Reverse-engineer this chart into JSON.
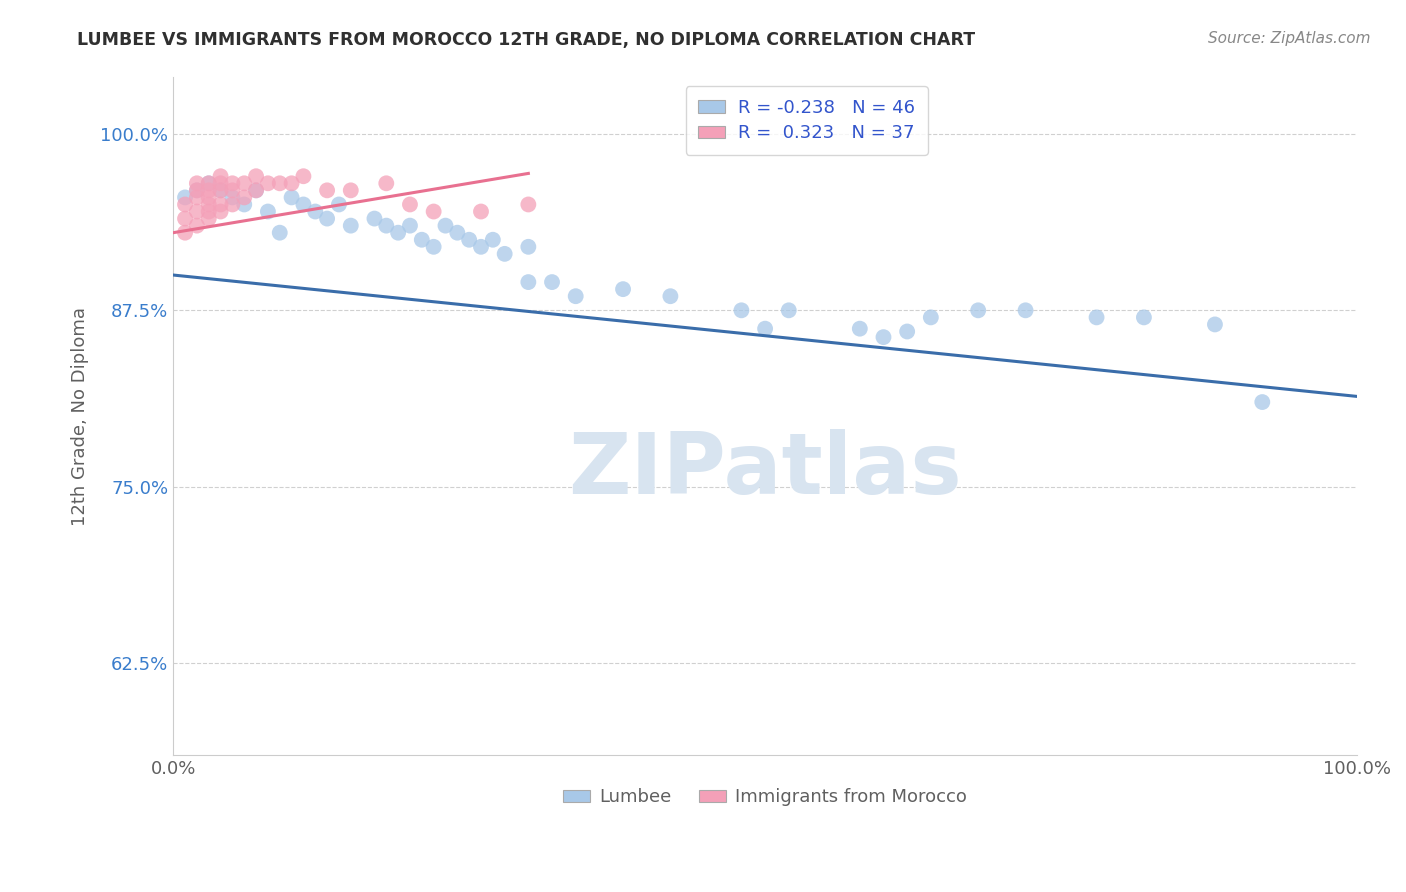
{
  "title": "LUMBEE VS IMMIGRANTS FROM MOROCCO 12TH GRADE, NO DIPLOMA CORRELATION CHART",
  "source": "Source: ZipAtlas.com",
  "ylabel": "12th Grade, No Diploma",
  "xlabel": "",
  "watermark": "ZIPatlas",
  "legend_entries": [
    {
      "label": "Lumbee",
      "color": "#a8c8e8",
      "R": "-0.238",
      "N": "46"
    },
    {
      "label": "Immigrants from Morocco",
      "color": "#f4a0b8",
      "R": "0.323",
      "N": "37"
    }
  ],
  "blue_scatter_x": [
    0.01,
    0.02,
    0.03,
    0.04,
    0.05,
    0.06,
    0.07,
    0.08,
    0.09,
    0.1,
    0.11,
    0.12,
    0.13,
    0.14,
    0.15,
    0.17,
    0.18,
    0.19,
    0.2,
    0.21,
    0.22,
    0.23,
    0.24,
    0.25,
    0.26,
    0.27,
    0.28,
    0.3,
    0.32,
    0.34,
    0.38,
    0.42,
    0.48,
    0.52,
    0.58,
    0.62,
    0.64,
    0.68,
    0.72,
    0.78,
    0.82,
    0.88,
    0.92,
    0.3,
    0.5,
    0.6
  ],
  "blue_scatter_y": [
    0.955,
    0.96,
    0.965,
    0.96,
    0.955,
    0.95,
    0.96,
    0.945,
    0.93,
    0.955,
    0.95,
    0.945,
    0.94,
    0.95,
    0.935,
    0.94,
    0.935,
    0.93,
    0.935,
    0.925,
    0.92,
    0.935,
    0.93,
    0.925,
    0.92,
    0.925,
    0.915,
    0.895,
    0.895,
    0.885,
    0.89,
    0.885,
    0.875,
    0.875,
    0.862,
    0.86,
    0.87,
    0.875,
    0.875,
    0.87,
    0.87,
    0.865,
    0.81,
    0.92,
    0.862,
    0.856
  ],
  "pink_scatter_x": [
    0.01,
    0.01,
    0.01,
    0.02,
    0.02,
    0.02,
    0.02,
    0.02,
    0.03,
    0.03,
    0.03,
    0.03,
    0.03,
    0.03,
    0.04,
    0.04,
    0.04,
    0.04,
    0.04,
    0.05,
    0.05,
    0.05,
    0.06,
    0.06,
    0.07,
    0.07,
    0.08,
    0.09,
    0.1,
    0.11,
    0.13,
    0.15,
    0.18,
    0.2,
    0.22,
    0.26,
    0.3
  ],
  "pink_scatter_y": [
    0.93,
    0.94,
    0.95,
    0.935,
    0.945,
    0.955,
    0.96,
    0.965,
    0.94,
    0.945,
    0.95,
    0.955,
    0.96,
    0.965,
    0.945,
    0.95,
    0.96,
    0.965,
    0.97,
    0.95,
    0.96,
    0.965,
    0.955,
    0.965,
    0.96,
    0.97,
    0.965,
    0.965,
    0.965,
    0.97,
    0.96,
    0.96,
    0.965,
    0.95,
    0.945,
    0.945,
    0.95
  ],
  "blue_line_x": [
    0.0,
    1.0
  ],
  "blue_line_y": [
    0.9,
    0.814
  ],
  "pink_line_x": [
    0.0,
    0.3
  ],
  "pink_line_y": [
    0.93,
    0.972
  ],
  "xlim": [
    0.0,
    1.0
  ],
  "ylim": [
    0.56,
    1.04
  ],
  "yticks": [
    0.625,
    0.75,
    0.875,
    1.0
  ],
  "ytick_labels": [
    "62.5%",
    "75.0%",
    "87.5%",
    "100.0%"
  ],
  "xticks": [
    0.0,
    1.0
  ],
  "xtick_labels": [
    "0.0%",
    "100.0%"
  ],
  "blue_color": "#a8c8e8",
  "pink_color": "#f4a0b8",
  "blue_line_color": "#3a6daa",
  "pink_line_color": "#e87090",
  "bg_color": "#ffffff",
  "grid_color": "#d0d0d0",
  "title_color": "#303030",
  "axis_color": "#606060",
  "legend_text_color": "#3355cc",
  "watermark_color": "#d8e4f0"
}
